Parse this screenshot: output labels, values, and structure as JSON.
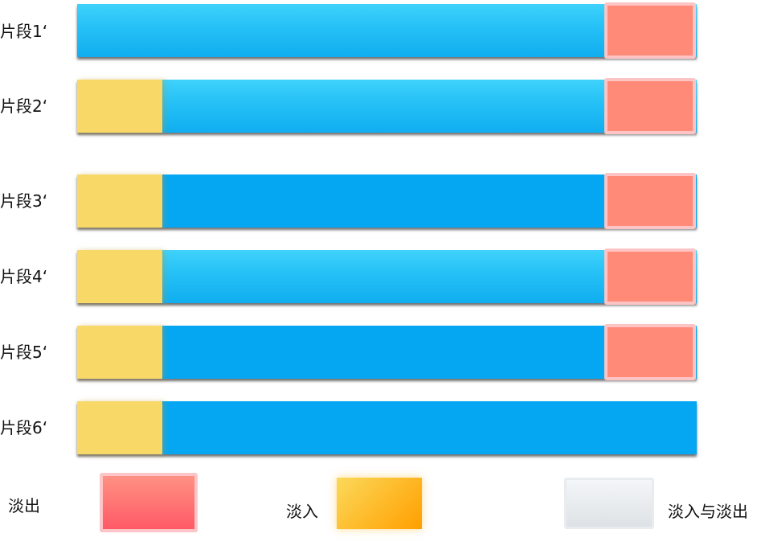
{
  "segments": [
    {
      "label": "片段1‘",
      "style": "gradient",
      "fade_in": false,
      "fade_out": true
    },
    {
      "label": "片段2‘",
      "style": "gradient",
      "fade_in": true,
      "fade_out": true
    },
    {
      "label": "片段3‘",
      "style": "flat",
      "fade_in": true,
      "fade_out": true
    },
    {
      "label": "片段4‘",
      "style": "gradient",
      "fade_in": true,
      "fade_out": true
    },
    {
      "label": "片段5‘",
      "style": "flat",
      "fade_in": true,
      "fade_out": true
    },
    {
      "label": "片段6‘",
      "style": "flat",
      "fade_in": true,
      "fade_out": false
    }
  ],
  "legend": {
    "fade_out": "淡出",
    "fade_in": "淡入",
    "fade_in_and_out": "淡入与淡出"
  },
  "colors": {
    "track_light": "#25c0f6",
    "track_flat": "#05a7f3",
    "fade_in": "#f8d968",
    "fade_out": "#ff8a77",
    "fade_in_and_out": "#dde2e6"
  }
}
